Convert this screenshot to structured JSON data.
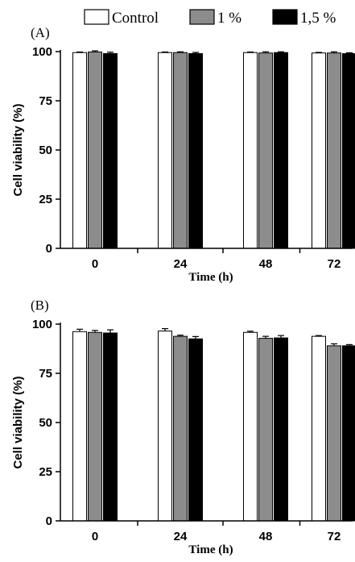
{
  "legend": [
    {
      "name": "Control",
      "color": "#ffffff"
    },
    {
      "name": "1 %",
      "color": "#8c8c8c"
    },
    {
      "name": "1,5 %",
      "color": "#000000"
    }
  ],
  "chart_data": [
    {
      "type": "bar",
      "panel_label": "(A)",
      "categories": [
        "0",
        "24",
        "48",
        "72"
      ],
      "xlabel": "Time (h)",
      "ylabel": "Cell viability (%)",
      "ylim": [
        0,
        100
      ],
      "yticks": [
        0,
        25,
        50,
        75,
        100
      ],
      "series": [
        {
          "name": "Control",
          "values": [
            99.5,
            99.5,
            99.5,
            99.3
          ],
          "errors": [
            0.3,
            0.3,
            0.3,
            0.3
          ]
        },
        {
          "name": "1 %",
          "values": [
            99.8,
            99.5,
            99.3,
            99.3
          ],
          "errors": [
            0.6,
            0.4,
            0.6,
            0.6
          ]
        },
        {
          "name": "1,5 %",
          "values": [
            99.0,
            99.0,
            99.5,
            99.0
          ],
          "errors": [
            0.7,
            0.6,
            0.4,
            0.4
          ]
        }
      ]
    },
    {
      "type": "bar",
      "panel_label": "(B)",
      "categories": [
        "0",
        "24",
        "48",
        "72"
      ],
      "xlabel": "Time (h)",
      "ylabel": "Cell viability (%)",
      "ylim": [
        0,
        100
      ],
      "yticks": [
        0,
        25,
        50,
        75,
        100
      ],
      "series": [
        {
          "name": "Control",
          "values": [
            96.2,
            96.5,
            95.8,
            93.8
          ],
          "errors": [
            1.2,
            1.2,
            0.6,
            0.4
          ]
        },
        {
          "name": "1 %",
          "values": [
            95.8,
            93.8,
            92.8,
            89.0
          ],
          "errors": [
            1.0,
            0.6,
            1.0,
            1.0
          ]
        },
        {
          "name": "1,5 %",
          "values": [
            95.5,
            92.5,
            93.0,
            89.0
          ],
          "errors": [
            1.6,
            1.2,
            1.2,
            0.6
          ]
        }
      ]
    }
  ]
}
